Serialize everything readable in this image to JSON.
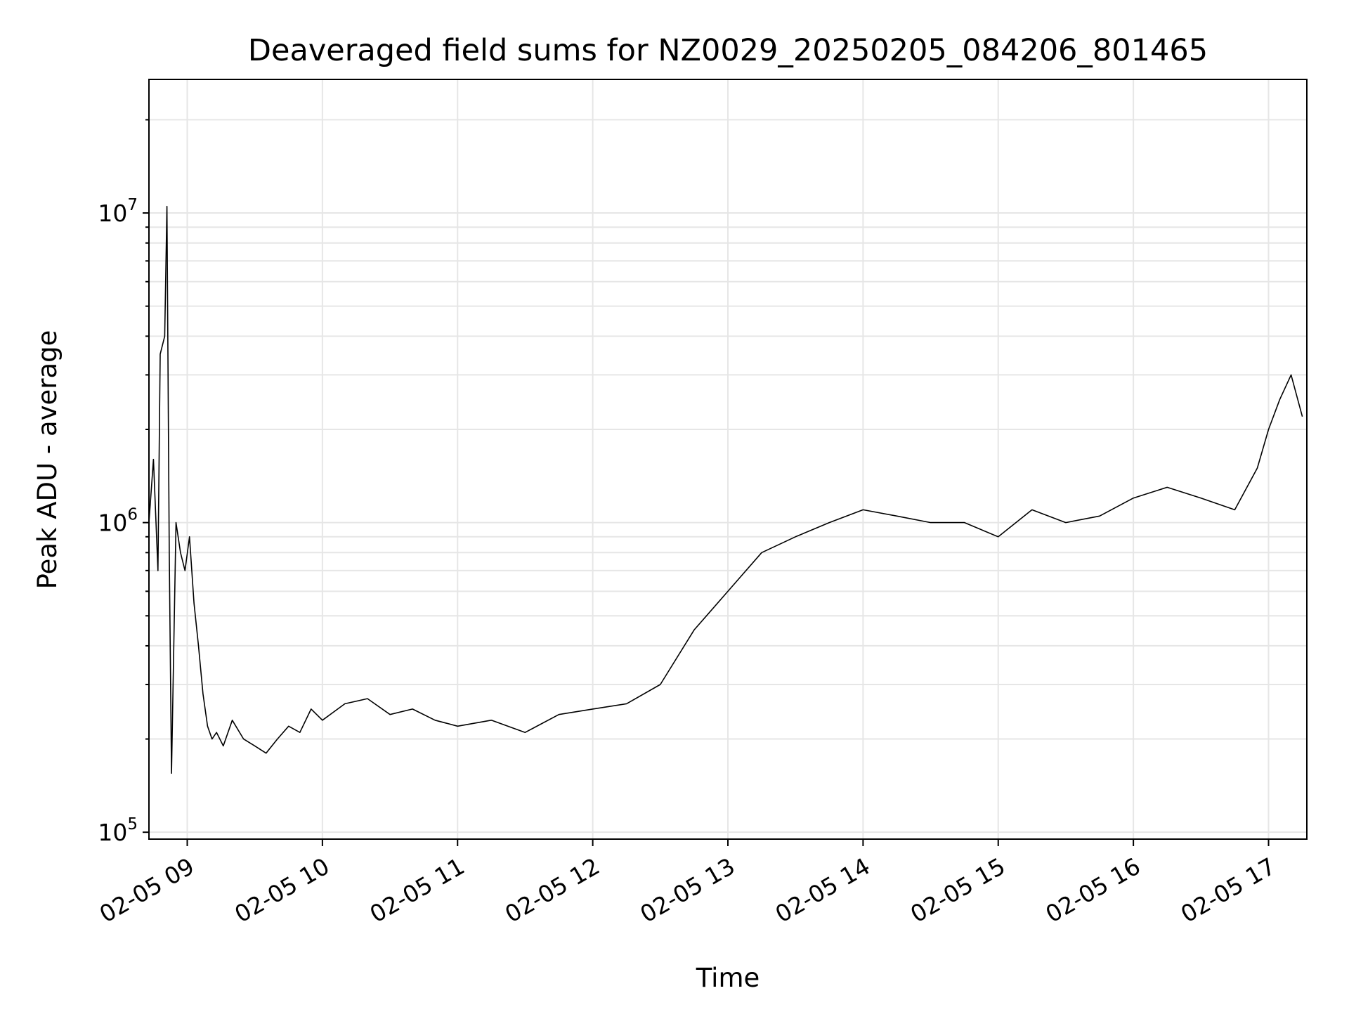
{
  "chart_data": {
    "type": "line",
    "title": "Deaveraged field sums for NZ0029_20250205_084206_801465",
    "xlabel": "Time",
    "ylabel": "Peak ADU - average",
    "yscale": "log",
    "ylim": [
      95000,
      27000000
    ],
    "xlim": [
      "02-05 08:43",
      "02-05 17:17"
    ],
    "grid": true,
    "line_color": "#000000",
    "grid_color": "#e6e6e6",
    "x_ticks": [
      "02-05 09",
      "02-05 10",
      "02-05 11",
      "02-05 12",
      "02-05 13",
      "02-05 14",
      "02-05 15",
      "02-05 16",
      "02-05 17"
    ],
    "y_ticks": [
      {
        "value": 100000,
        "base": "10",
        "exp": "5"
      },
      {
        "value": 1000000,
        "base": "10",
        "exp": "6"
      },
      {
        "value": 10000000,
        "base": "10",
        "exp": "7"
      }
    ],
    "series": [
      {
        "x": [
          "08:43",
          "08:45",
          "08:47",
          "08:48",
          "08:50",
          "08:51",
          "08:52",
          "08:53",
          "08:55",
          "08:57",
          "08:59",
          "09:01",
          "09:03",
          "09:05",
          "09:07",
          "09:09",
          "09:11",
          "09:13",
          "09:16",
          "09:20",
          "09:25",
          "09:30",
          "09:35",
          "09:40",
          "09:45",
          "09:50",
          "09:55",
          "10:00",
          "10:10",
          "10:20",
          "10:30",
          "10:40",
          "10:50",
          "11:00",
          "11:15",
          "11:30",
          "11:45",
          "12:00",
          "12:15",
          "12:30",
          "12:45",
          "13:00",
          "13:15",
          "13:30",
          "13:45",
          "14:00",
          "14:15",
          "14:30",
          "14:45",
          "15:00",
          "15:15",
          "15:30",
          "15:45",
          "16:00",
          "16:15",
          "16:30",
          "16:45",
          "16:55",
          "17:00",
          "17:05",
          "17:10",
          "17:15"
        ],
        "y": [
          1000000,
          1600000,
          700000,
          3500000,
          4000000,
          10500000,
          800000,
          155000,
          1000000,
          800000,
          700000,
          900000,
          550000,
          400000,
          280000,
          220000,
          200000,
          210000,
          190000,
          230000,
          200000,
          190000,
          180000,
          200000,
          220000,
          210000,
          250000,
          230000,
          260000,
          270000,
          240000,
          250000,
          230000,
          220000,
          230000,
          210000,
          240000,
          250000,
          260000,
          300000,
          450000,
          600000,
          800000,
          900000,
          1000000,
          1100000,
          1050000,
          1000000,
          1000000,
          900000,
          1100000,
          1000000,
          1050000,
          1200000,
          1300000,
          1200000,
          1100000,
          1500000,
          2000000,
          2500000,
          3000000,
          2200000
        ]
      }
    ]
  }
}
